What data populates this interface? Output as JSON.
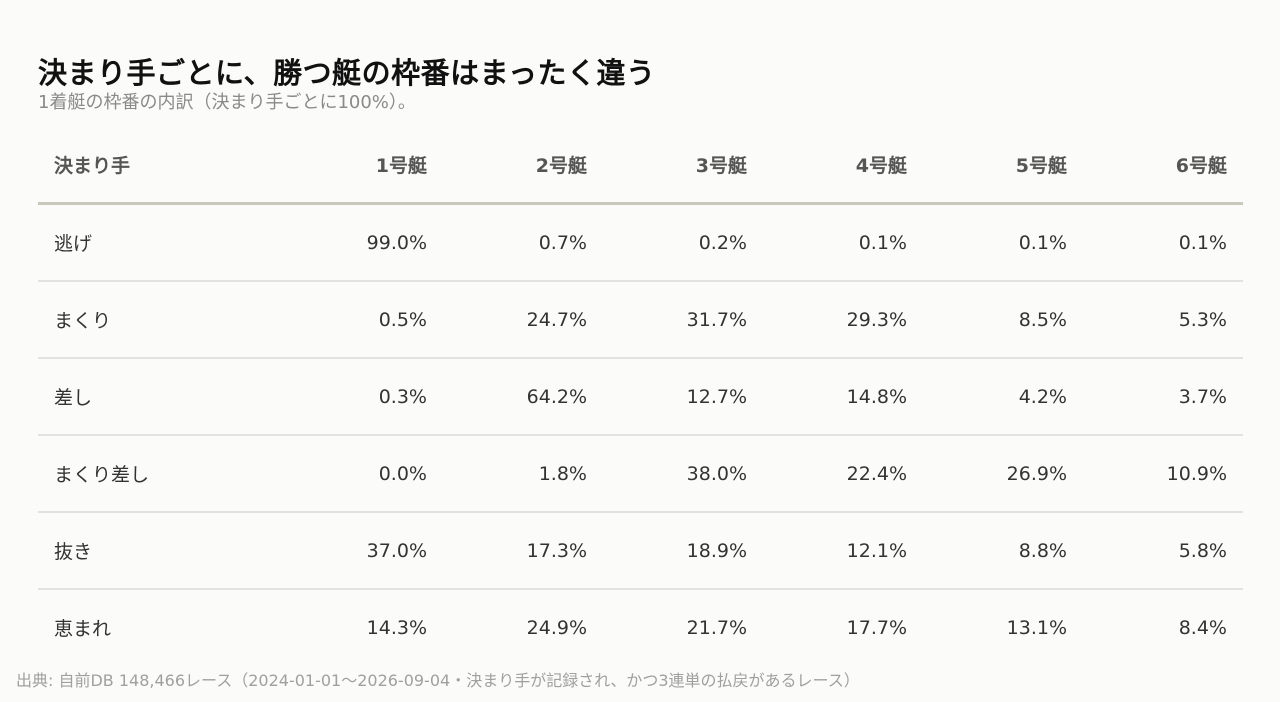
{
  "title": "決まり手ごとに、勝つ艇の枠番はまったく違う",
  "subtitle": "1着艇の枠番の内訳（決まり手ごとに100%）。",
  "source": "出典: 自前DB 148,466レース（2024-01-01〜2026-09-04・決まり手が記録され、かつ3連単の払戻があるレース）",
  "chart_data": {
    "type": "table",
    "columns": [
      "決まり手",
      "1号艇",
      "2号艇",
      "3号艇",
      "4号艇",
      "5号艇",
      "6号艇"
    ],
    "rows": [
      {
        "label": "逃げ",
        "cells": [
          "99.0%",
          "0.7%",
          "0.2%",
          "0.1%",
          "0.1%",
          "0.1%"
        ]
      },
      {
        "label": "まくり",
        "cells": [
          "0.5%",
          "24.7%",
          "31.7%",
          "29.3%",
          "8.5%",
          "5.3%"
        ]
      },
      {
        "label": "差し",
        "cells": [
          "0.3%",
          "64.2%",
          "12.7%",
          "14.8%",
          "4.2%",
          "3.7%"
        ]
      },
      {
        "label": "まくり差し",
        "cells": [
          "0.0%",
          "1.8%",
          "38.0%",
          "22.4%",
          "26.9%",
          "10.9%"
        ]
      },
      {
        "label": "抜き",
        "cells": [
          "37.0%",
          "17.3%",
          "18.9%",
          "12.1%",
          "8.8%",
          "5.8%"
        ]
      },
      {
        "label": "恵まれ",
        "cells": [
          "14.3%",
          "24.9%",
          "21.7%",
          "17.7%",
          "13.1%",
          "8.4%"
        ]
      }
    ]
  }
}
